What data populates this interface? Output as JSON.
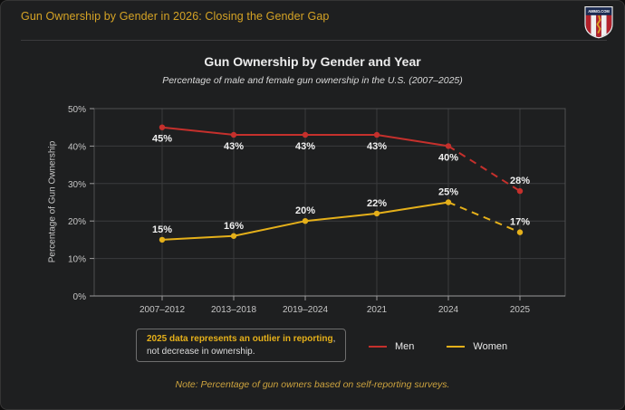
{
  "header": {
    "title": "Gun Ownership by Gender in 2026: Closing the Gender Gap",
    "logo_text": "AMMO.COM"
  },
  "chart_data": {
    "type": "line",
    "title": "Gun Ownership by Gender and Year",
    "subtitle": "Percentage of male and female gun ownership in the U.S. (2007–2025)",
    "ylabel": "Percentage of Gun Ownership",
    "xlabel": "",
    "categories": [
      "2007–2012",
      "2013–2018",
      "2019–2024",
      "2021",
      "2024",
      "2025"
    ],
    "series": [
      {
        "name": "Men",
        "color": "#c5302c",
        "values": [
          45,
          43,
          43,
          43,
          40,
          28
        ],
        "dashed_from_index": 4,
        "label_side": [
          "below",
          "below",
          "below",
          "below",
          "below",
          "above"
        ]
      },
      {
        "name": "Women",
        "color": "#e5b01a",
        "values": [
          15,
          16,
          20,
          22,
          25,
          17
        ],
        "dashed_from_index": 4,
        "label_side": [
          "above",
          "above",
          "above",
          "above",
          "above",
          "above"
        ]
      }
    ],
    "ylim": [
      0,
      50
    ],
    "yticks": [
      0,
      10,
      20,
      30,
      40,
      50
    ],
    "ytick_suffix": "%",
    "grid": true,
    "legend_position": "bottom"
  },
  "annotation": {
    "bold_text": "2025 data represents an outlier in reporting",
    "separator": ",",
    "line2": "not decrease in ownership."
  },
  "footnote": "Note: Percentage of gun owners based on self-reporting surveys.",
  "colors": {
    "men": "#c5302c",
    "women": "#e5b01a",
    "header_title": "#d5a325",
    "footnote_gold": "#cda33e",
    "background": "#1e1f20",
    "gridline": "#3a3b3d"
  }
}
